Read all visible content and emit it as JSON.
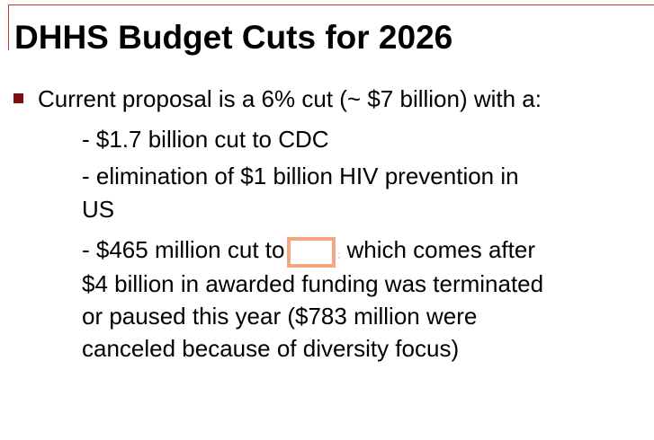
{
  "title": "DHHS Budget Cuts for 2026",
  "bullet": "Current proposal is a 6% cut (~ $7 billion) with a:",
  "sub_items": {
    "cdc": "- $1.7 billion cut to CDC",
    "hiv_line1": "- elimination of $1 billion HIV prevention in",
    "hiv_line2": "US",
    "nih_prefix": "- $465 million cut to",
    "nih_semi": ";",
    "nih_suffix": " which comes after",
    "nih_line2": "$4 billion in awarded funding was terminated",
    "nih_line3": "or paused this year ($783 million were",
    "nih_line4": "canceled because of diversity focus)"
  },
  "colors": {
    "bullet": "#7f0f0f",
    "frame_line": "#c0392b",
    "redaction_border": "#f4a582"
  }
}
